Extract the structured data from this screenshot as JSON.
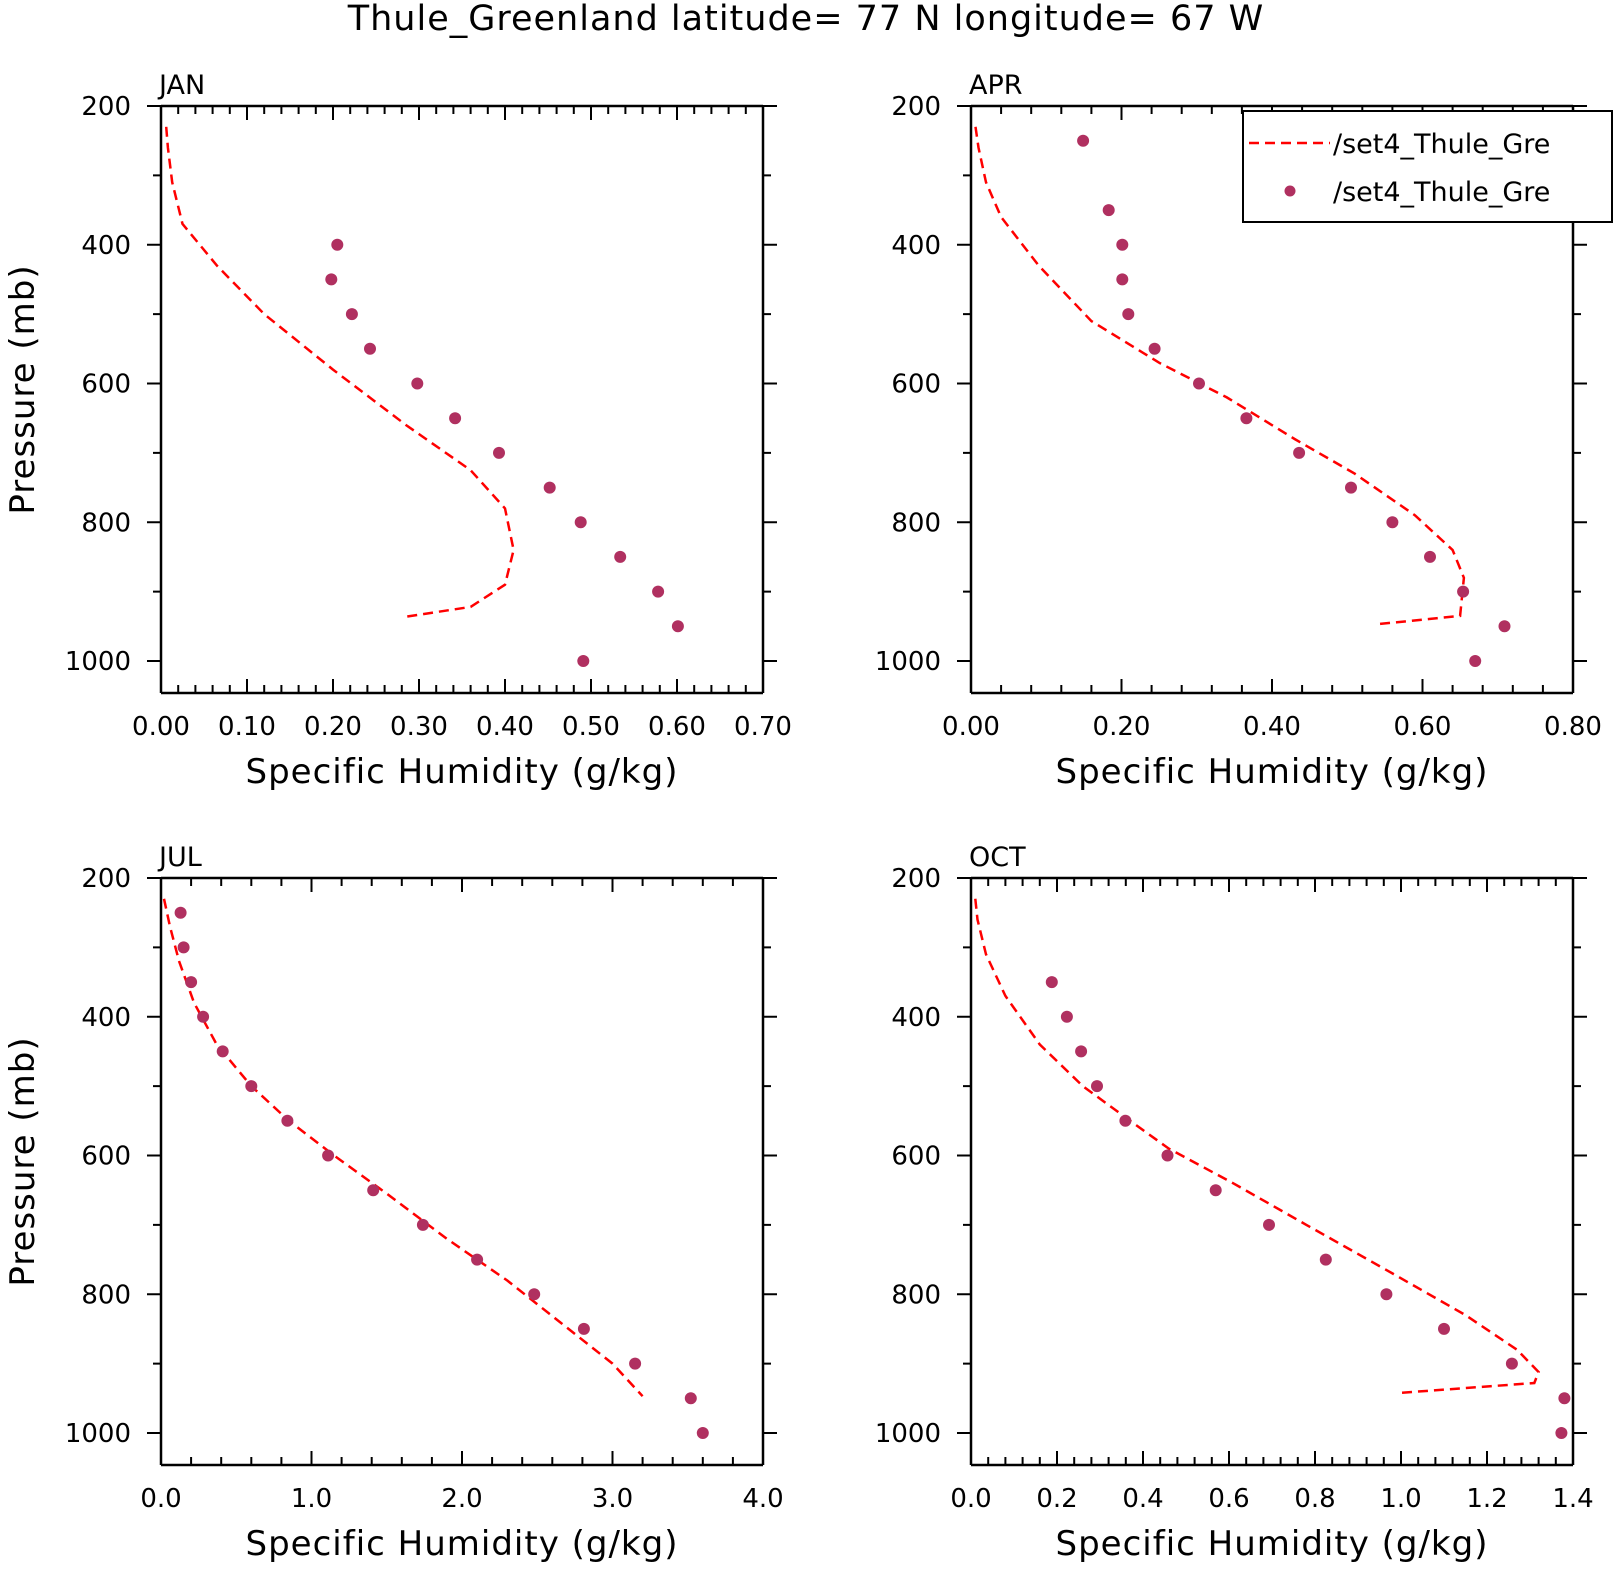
{
  "title": "Thule_Greenland  latitude= 77 N longitude= 67 W",
  "legend": {
    "entries": [
      {
        "label": "/set4_Thule_Gre",
        "style": "dashed-line",
        "color": "#ff0000"
      },
      {
        "label": "/set4_Thule_Gre",
        "style": "dots",
        "color": "#b03060"
      }
    ],
    "placement": "top-right of APR panel"
  },
  "colors": {
    "model_line": "#ff0000",
    "obs_points": "#b03060",
    "axes": "#000000"
  },
  "chart_data": [
    {
      "type": "line",
      "panel": "JAN",
      "xlabel": "Specific Humidity (g/kg)",
      "ylabel": "Pressure (mb)",
      "xlim": [
        0,
        0.7
      ],
      "ylim": [
        1000,
        200
      ],
      "y_inverted": true,
      "xticks": [
        "0.00",
        "0.10",
        "0.20",
        "0.30",
        "0.40",
        "0.50",
        "0.60",
        "0.70"
      ],
      "xtick_values": [
        0,
        0.1,
        0.2,
        0.3,
        0.4,
        0.5,
        0.6,
        0.7
      ],
      "yticks": [
        "200",
        "400",
        "600",
        "800",
        "1000"
      ],
      "ytick_values": [
        200,
        400,
        600,
        800,
        1000
      ],
      "series": [
        {
          "style": "dashed",
          "color": "#ff0000",
          "x": [
            0.006,
            0.008,
            0.013,
            0.025,
            0.065,
            0.12,
            0.2,
            0.285,
            0.36,
            0.4,
            0.41,
            0.4,
            0.36,
            0.28
          ],
          "y": [
            230,
            260,
            310,
            370,
            430,
            500,
            580,
            660,
            725,
            780,
            840,
            890,
            922,
            937
          ]
        },
        {
          "style": "dots",
          "color": "#b03060",
          "x": [
            0.205,
            0.198,
            0.222,
            0.243,
            0.298,
            0.342,
            0.393,
            0.452,
            0.488,
            0.534,
            0.578,
            0.601,
            0.491
          ],
          "y": [
            400,
            450,
            500,
            550,
            600,
            650,
            700,
            750,
            800,
            850,
            900,
            950,
            1000
          ]
        }
      ]
    },
    {
      "type": "line",
      "panel": "APR",
      "xlabel": "Specific Humidity (g/kg)",
      "ylabel": "",
      "xlim": [
        0,
        0.8
      ],
      "ylim": [
        1000,
        200
      ],
      "y_inverted": true,
      "xticks": [
        "0.00",
        "0.20",
        "0.40",
        "0.60",
        "0.80"
      ],
      "xtick_values": [
        0,
        0.2,
        0.4,
        0.6,
        0.8
      ],
      "yticks": [
        "200",
        "400",
        "600",
        "800",
        "1000"
      ],
      "ytick_values": [
        200,
        400,
        600,
        800,
        1000
      ],
      "series": [
        {
          "style": "dashed",
          "color": "#ff0000",
          "x": [
            0.006,
            0.01,
            0.02,
            0.04,
            0.09,
            0.16,
            0.25,
            0.34,
            0.43,
            0.51,
            0.59,
            0.64,
            0.655,
            0.65,
            0.54
          ],
          "y": [
            230,
            260,
            310,
            360,
            430,
            510,
            570,
            620,
            680,
            730,
            790,
            840,
            880,
            935,
            947
          ]
        },
        {
          "style": "dots",
          "color": "#b03060",
          "x": [
            0.149,
            0.183,
            0.201,
            0.201,
            0.209,
            0.244,
            0.303,
            0.366,
            0.436,
            0.505,
            0.56,
            0.61,
            0.654,
            0.709,
            0.67
          ],
          "y": [
            250,
            350,
            400,
            450,
            500,
            550,
            600,
            650,
            700,
            750,
            800,
            850,
            900,
            950,
            1000
          ]
        }
      ]
    },
    {
      "type": "line",
      "panel": "JUL",
      "xlabel": "Specific Humidity (g/kg)",
      "ylabel": "Pressure (mb)",
      "xlim": [
        0,
        4
      ],
      "ylim": [
        1000,
        200
      ],
      "y_inverted": true,
      "xticks": [
        "0.0",
        "1.0",
        "2.0",
        "3.0",
        "4.0"
      ],
      "xtick_values": [
        0,
        1,
        2,
        3,
        4
      ],
      "yticks": [
        "200",
        "400",
        "600",
        "800",
        "1000"
      ],
      "ytick_values": [
        200,
        400,
        600,
        800,
        1000
      ],
      "series": [
        {
          "style": "dashed",
          "color": "#ff0000",
          "x": [
            0.02,
            0.06,
            0.12,
            0.22,
            0.37,
            0.6,
            0.85,
            1.15,
            1.5,
            1.9,
            2.3,
            2.65,
            3.0,
            3.2
          ],
          "y": [
            230,
            270,
            320,
            380,
            440,
            500,
            550,
            600,
            655,
            720,
            780,
            840,
            900,
            947
          ]
        },
        {
          "style": "dots",
          "color": "#b03060",
          "x": [
            0.13,
            0.15,
            0.2,
            0.28,
            0.41,
            0.6,
            0.84,
            1.11,
            1.41,
            1.74,
            2.1,
            2.48,
            2.81,
            3.15,
            3.52,
            3.6
          ],
          "y": [
            250,
            300,
            350,
            400,
            450,
            500,
            550,
            600,
            650,
            700,
            750,
            800,
            850,
            900,
            950,
            1000
          ]
        }
      ]
    },
    {
      "type": "line",
      "panel": "OCT",
      "xlabel": "Specific Humidity (g/kg)",
      "ylabel": "",
      "xlim": [
        0,
        1.4
      ],
      "ylim": [
        1000,
        200
      ],
      "y_inverted": true,
      "xticks": [
        "0.0",
        "0.2",
        "0.4",
        "0.6",
        "0.8",
        "1.0",
        "1.2",
        "1.4"
      ],
      "xtick_values": [
        0,
        0.2,
        0.4,
        0.6,
        0.8,
        1.0,
        1.2,
        1.4
      ],
      "yticks": [
        "200",
        "400",
        "600",
        "800",
        "1000"
      ],
      "ytick_values": [
        200,
        400,
        600,
        800,
        1000
      ],
      "series": [
        {
          "style": "dashed",
          "color": "#ff0000",
          "x": [
            0.01,
            0.015,
            0.035,
            0.08,
            0.16,
            0.26,
            0.37,
            0.46,
            0.61,
            0.78,
            0.98,
            1.15,
            1.27,
            1.32,
            1.31,
            1.0
          ],
          "y": [
            230,
            260,
            310,
            370,
            440,
            500,
            550,
            590,
            640,
            700,
            770,
            830,
            880,
            912,
            928,
            942
          ]
        },
        {
          "style": "dots",
          "color": "#b03060",
          "x": [
            0.188,
            0.223,
            0.256,
            0.293,
            0.359,
            0.457,
            0.569,
            0.693,
            0.825,
            0.966,
            1.1,
            1.258,
            1.38,
            1.373
          ],
          "y": [
            350,
            400,
            450,
            500,
            550,
            600,
            650,
            700,
            750,
            800,
            850,
            900,
            950,
            1000
          ]
        }
      ]
    }
  ]
}
